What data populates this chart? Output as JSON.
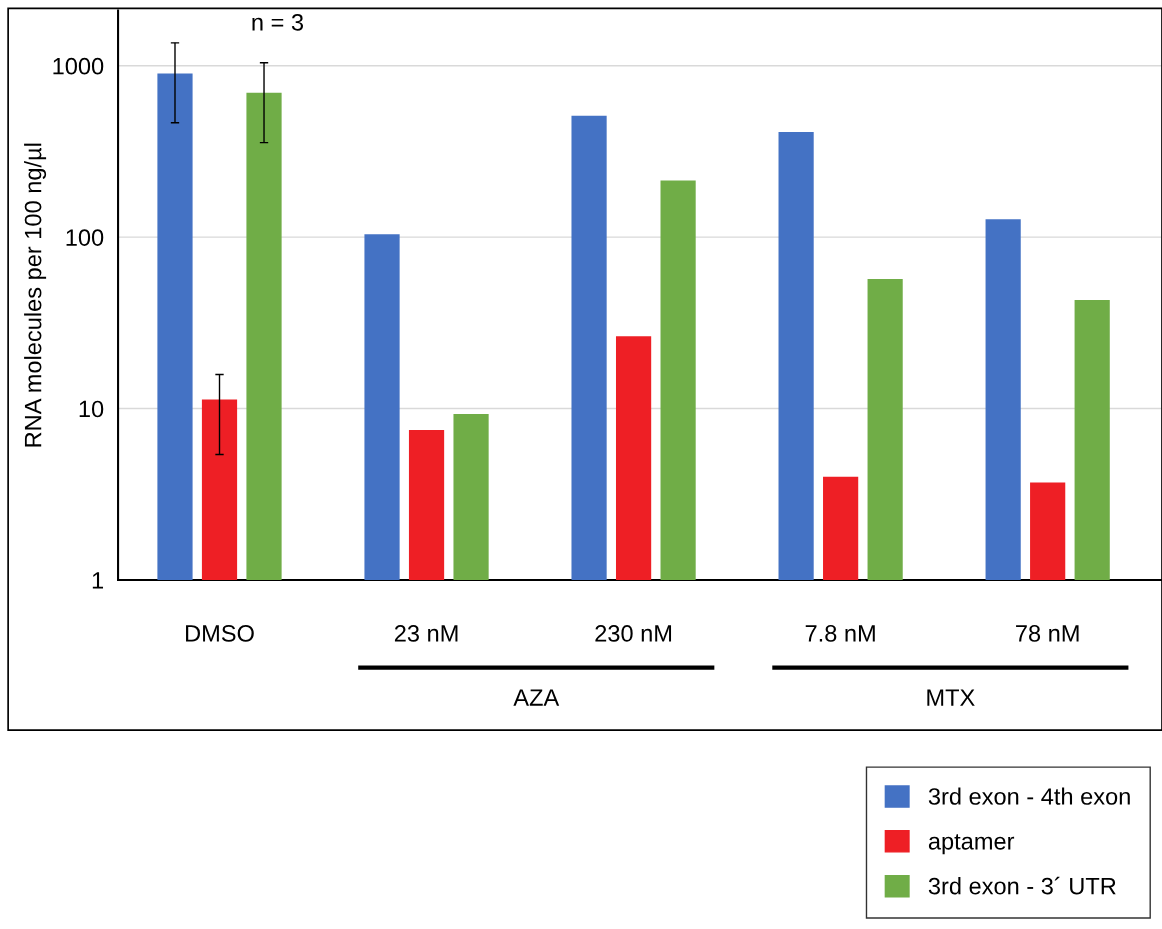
{
  "chart_data": {
    "type": "bar",
    "ylabel": "RNA molecules per 100 ng/µl",
    "categories": [
      "DMSO",
      "23 nM",
      "230 nM",
      "7.8 nM",
      "78 nM"
    ],
    "series": [
      {
        "name": "3rd exon - 4th exon",
        "color": "#4472c4",
        "values": [
          900,
          104,
          510,
          410,
          127
        ],
        "errors": [
          [
            465,
            1360
          ],
          null,
          null,
          null,
          null
        ]
      },
      {
        "name": "aptamer",
        "color": "#ee1f25",
        "values": [
          11.3,
          7.5,
          26.4,
          4.0,
          3.7
        ],
        "errors": [
          [
            5.4,
            15.8
          ],
          null,
          null,
          null,
          null
        ]
      },
      {
        "name": "3rd exon - 3´ UTR",
        "color": "#70ad47",
        "values": [
          695,
          9.3,
          214,
          57,
          43
        ],
        "errors": [
          [
            356,
            1040
          ],
          null,
          null,
          null,
          null
        ]
      }
    ],
    "log": true,
    "ylim": [
      1,
      2100
    ],
    "yticks": [
      1,
      10,
      100,
      1000
    ],
    "grid": "y",
    "legend": "bottom right",
    "annotations": [
      "n = 3",
      "AZA",
      "MTX"
    ]
  }
}
